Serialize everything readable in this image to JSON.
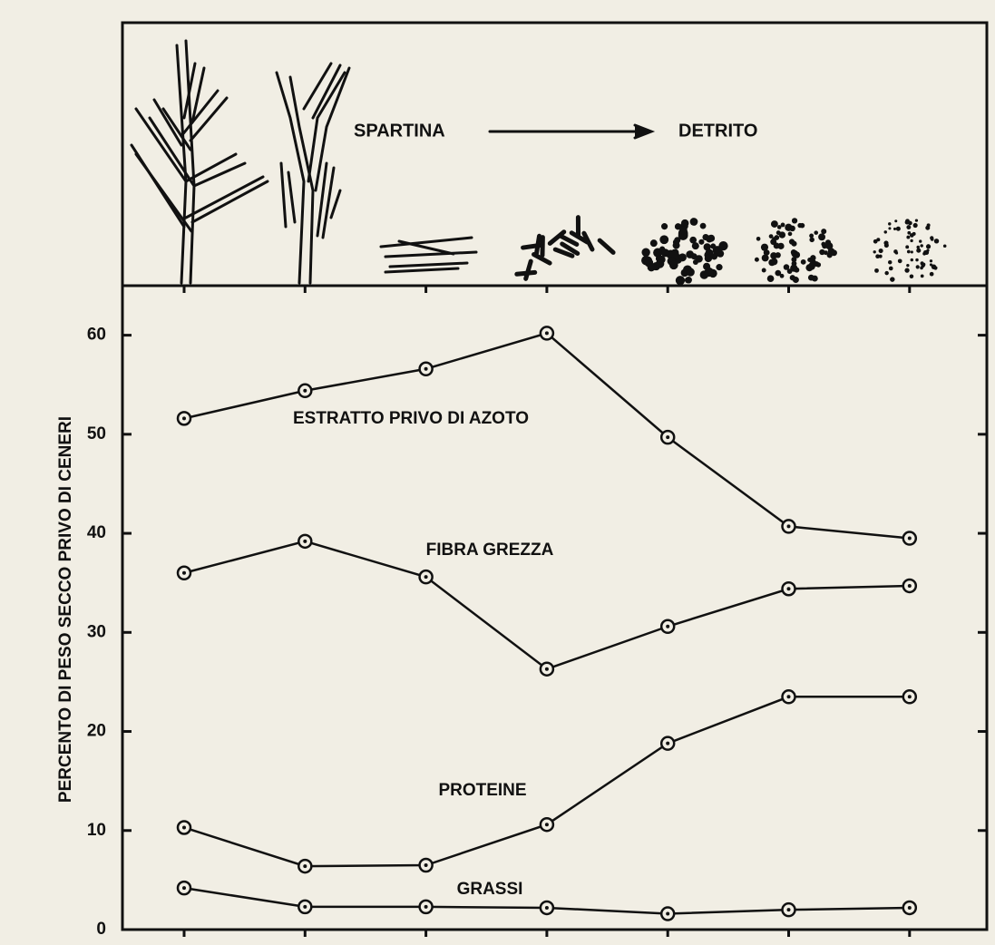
{
  "chart_data": {
    "type": "line",
    "illustration": {
      "from": "SPARTINA",
      "to": "DETRITO"
    },
    "ylabel": "PERCENTO DI PESO SECCO PRIVO DI CENERI",
    "categories": [
      null,
      null,
      null,
      null,
      null,
      null,
      null
    ],
    "ylim": [
      0,
      65
    ],
    "yticks": [
      0,
      10,
      20,
      30,
      40,
      50,
      60
    ],
    "grid": false,
    "series": [
      {
        "name": "ESTRATTO PRIVO DI AZOTO",
        "color": "#111111",
        "values": [
          51.6,
          54.4,
          56.6,
          60.2,
          49.7,
          40.7,
          39.5
        ]
      },
      {
        "name": "FIBRA GREZZA",
        "color": "#111111",
        "values": [
          36.0,
          39.2,
          35.6,
          26.3,
          30.6,
          34.4,
          34.7
        ]
      },
      {
        "name": "PROTEINE",
        "color": "#111111",
        "values": [
          10.3,
          6.4,
          6.5,
          10.6,
          18.8,
          23.5,
          23.5
        ]
      },
      {
        "name": "GRASSI",
        "color": "#111111",
        "values": [
          4.2,
          2.3,
          2.3,
          2.2,
          1.6,
          2.0,
          2.2
        ]
      }
    ]
  }
}
